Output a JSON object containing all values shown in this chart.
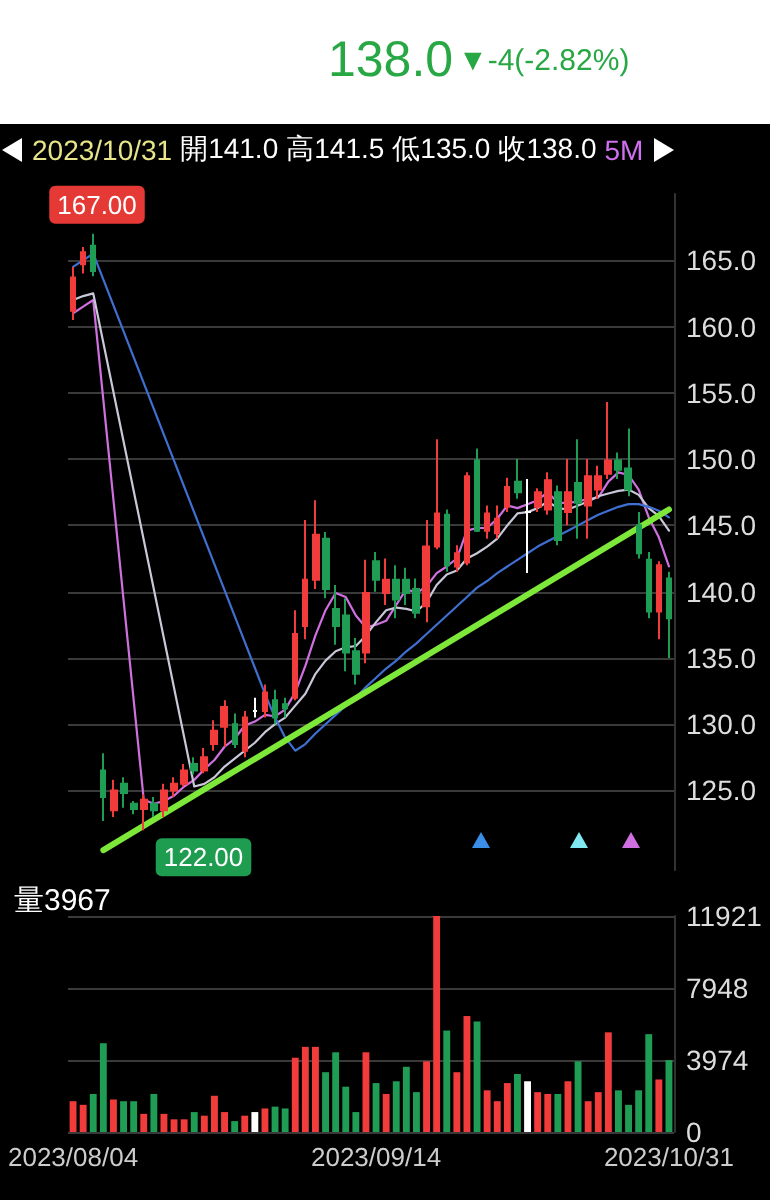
{
  "chart_data": [
    {
      "type": "candlestick",
      "categories": [
        "2023/08/04",
        null,
        null,
        null,
        null,
        null,
        null,
        null,
        null,
        null,
        null,
        null,
        null,
        null,
        null,
        null,
        null,
        null,
        null,
        null,
        null,
        null,
        null,
        null,
        null,
        null,
        null,
        null,
        null,
        null,
        "2023/09/14",
        null,
        null,
        null,
        null,
        null,
        null,
        null,
        null,
        null,
        null,
        null,
        null,
        null,
        null,
        null,
        null,
        null,
        null,
        null,
        null,
        null,
        null,
        null,
        null,
        null,
        null,
        null,
        null,
        "2023/10/31"
      ],
      "ohlc": [
        [
          161.2,
          164.5,
          160.5,
          163.7
        ],
        [
          164.7,
          166,
          164,
          165.6
        ],
        [
          166.1,
          167,
          163.8,
          164.2
        ],
        [
          126.5,
          127.8,
          122.7,
          124.5
        ],
        [
          123.5,
          125.8,
          123,
          125
        ],
        [
          125.5,
          126,
          123.7,
          124.8
        ],
        [
          124,
          124.2,
          123.2,
          123.6
        ],
        [
          123.6,
          124.7,
          122,
          124.3
        ],
        [
          124,
          124.5,
          123,
          123.5
        ],
        [
          123.5,
          125.5,
          123,
          125
        ],
        [
          125,
          126,
          124.5,
          125.5
        ],
        [
          125.5,
          127,
          125.3,
          126.5
        ],
        [
          127,
          127.5,
          126.2,
          126.5
        ],
        [
          126.5,
          128.2,
          126.3,
          127.5
        ],
        [
          128.5,
          130.3,
          128,
          129.5
        ],
        [
          129.8,
          131.8,
          128.3,
          131.3
        ],
        [
          130,
          130.8,
          128.2,
          128.5
        ],
        [
          128,
          131,
          127.5,
          130.5
        ],
        [
          131,
          132,
          130.5,
          131
        ],
        [
          131,
          133,
          130.5,
          132.4
        ],
        [
          131.8,
          132.6,
          130,
          130.5
        ],
        [
          131.5,
          132,
          130.5,
          131.2
        ],
        [
          132,
          138.6,
          131.8,
          136.8
        ],
        [
          137.4,
          145.4,
          136.4,
          140.9
        ],
        [
          140.9,
          146.9,
          140.2,
          144.3
        ],
        [
          144,
          144.5,
          139.5,
          140.2
        ],
        [
          138.7,
          140.5,
          136,
          137.4
        ],
        [
          138.2,
          139.5,
          134,
          135.4
        ],
        [
          135.5,
          136.5,
          133,
          133.8
        ],
        [
          135.4,
          142.4,
          134.6,
          139.9
        ],
        [
          142.3,
          143,
          140,
          140.9
        ],
        [
          139.9,
          142.5,
          139,
          140.9
        ],
        [
          140.9,
          142,
          138,
          139.4
        ],
        [
          140.9,
          141.8,
          139,
          139.9
        ],
        [
          140.2,
          141,
          138,
          138.4
        ],
        [
          138.9,
          145.4,
          137.7,
          143.4
        ],
        [
          143.4,
          151.5,
          143.2,
          145.9
        ],
        [
          145.8,
          146.2,
          141.5,
          142
        ],
        [
          141.9,
          143.5,
          141.5,
          142.9
        ],
        [
          142.2,
          149,
          142,
          148.7
        ],
        [
          149.9,
          150.8,
          144.5,
          144.6
        ],
        [
          144.6,
          146.5,
          144,
          145.9
        ],
        [
          144.4,
          146.5,
          144,
          145.5
        ],
        [
          146.4,
          148.6,
          146,
          147.9
        ],
        [
          148.3,
          150,
          147,
          147.5
        ],
        [
          146,
          148.5,
          141.4,
          146
        ],
        [
          146.4,
          147.8,
          146,
          147.5
        ],
        [
          146.2,
          149,
          145.8,
          148.4
        ],
        [
          147.5,
          148,
          143.5,
          143.9
        ],
        [
          146,
          150,
          145,
          147.5
        ],
        [
          148.2,
          151.5,
          144,
          146.7
        ],
        [
          146.5,
          150,
          144,
          148.7
        ],
        [
          147.7,
          149.5,
          147,
          148.7
        ],
        [
          148.9,
          154.3,
          148.5,
          149.9
        ],
        [
          149.9,
          150.5,
          148.5,
          149.2
        ],
        [
          149.3,
          152.3,
          147.2,
          147.7
        ],
        [
          145,
          146,
          142.5,
          142.9
        ],
        [
          142.4,
          143,
          138,
          138.5
        ],
        [
          138.5,
          142.3,
          136.4,
          142
        ],
        [
          141,
          141.5,
          135,
          138
        ]
      ],
      "colors": [
        "#f23b3b",
        "#f23b3b",
        "#1f9d55",
        "#1f9d55",
        "#f23b3b",
        "#1f9d55",
        "#1f9d55",
        "#f23b3b",
        "#1f9d55",
        "#f23b3b",
        "#f23b3b",
        "#f23b3b",
        "#1f9d55",
        "#f23b3b",
        "#f23b3b",
        "#f23b3b",
        "#1f9d55",
        "#f23b3b",
        "#ffffff",
        "#f23b3b",
        "#1f9d55",
        "#1f9d55",
        "#f23b3b",
        "#f23b3b",
        "#f23b3b",
        "#1f9d55",
        "#1f9d55",
        "#1f9d55",
        "#1f9d55",
        "#f23b3b",
        "#1f9d55",
        "#f23b3b",
        "#1f9d55",
        "#1f9d55",
        "#1f9d55",
        "#f23b3b",
        "#f23b3b",
        "#1f9d55",
        "#f23b3b",
        "#f23b3b",
        "#1f9d55",
        "#f23b3b",
        "#f23b3b",
        "#f23b3b",
        "#1f9d55",
        "#ffffff",
        "#f23b3b",
        "#f23b3b",
        "#1f9d55",
        "#f23b3b",
        "#1f9d55",
        "#f23b3b",
        "#f23b3b",
        "#f23b3b",
        "#1f9d55",
        "#1f9d55",
        "#1f9d55",
        "#1f9d55",
        "#f23b3b",
        "#1f9d55"
      ],
      "series": [
        {
          "type": "line",
          "color": "#d070e0",
          "values": [
            161,
            161.5,
            162,
            null,
            null,
            null,
            null,
            124.3,
            124,
            124.2,
            124.6,
            125.3,
            125.8,
            126.6,
            127.3,
            128.3,
            128.9,
            129.9,
            130.2,
            130.7,
            130.6,
            131.1,
            132.4,
            134.4,
            136.7,
            138.6,
            139.9,
            139.6,
            138.2,
            137.3,
            137.5,
            137.8,
            139,
            140.2,
            139.9,
            140.4,
            141.4,
            141.9,
            142.5,
            144.6,
            144.8,
            144.8,
            145.5,
            146.5,
            146.3,
            146.6,
            146.9,
            147.5,
            146.7,
            146.7,
            146.8,
            147,
            147.1,
            148.3,
            149,
            148.8,
            147.7,
            145.6,
            144.1,
            141.9
          ]
        },
        {
          "type": "line",
          "color": "#c8c8d8",
          "values": [
            162,
            162.3,
            162.5,
            null,
            null,
            null,
            null,
            null,
            null,
            null,
            null,
            null,
            125.3,
            125.5,
            126,
            126.8,
            127.4,
            128,
            128.6,
            129.4,
            130,
            130.5,
            131.4,
            132.3,
            133.8,
            134.8,
            135.5,
            135.8,
            135.9,
            136.7,
            137.7,
            138.6,
            138.8,
            138.7,
            138.5,
            139.2,
            140.5,
            141.3,
            141.6,
            142.5,
            142.9,
            143.4,
            144,
            145,
            145.9,
            146,
            146.3,
            146.8,
            146.3,
            146.2,
            146.5,
            146.8,
            147.2,
            147.4,
            147.6,
            147.7,
            147.3,
            146.3,
            145.7,
            144.6
          ]
        },
        {
          "type": "line",
          "color": "#3f6fd0",
          "values": [
            164.5,
            165,
            165.5,
            null,
            null,
            null,
            null,
            null,
            null,
            null,
            null,
            null,
            null,
            null,
            null,
            null,
            null,
            null,
            null,
            132.3,
            130.5,
            129,
            128,
            128.5,
            129.3,
            130,
            130.7,
            131.4,
            132,
            132.8,
            133.5,
            134.2,
            134.8,
            135.5,
            136.1,
            136.8,
            137.5,
            138.2,
            138.9,
            139.6,
            140.3,
            140.8,
            141.4,
            141.9,
            142.4,
            142.9,
            143.4,
            143.8,
            144.2,
            144.6,
            145,
            145.4,
            145.8,
            146.1,
            146.4,
            146.6,
            146.6,
            146.4,
            146.1,
            145.6
          ]
        },
        {
          "type": "line",
          "color": "#7ee83a",
          "values": [
            null,
            null,
            null,
            120.5,
            null,
            null,
            null,
            null,
            null,
            null,
            null,
            null,
            null,
            null,
            null,
            null,
            null,
            null,
            null,
            null,
            null,
            null,
            null,
            null,
            null,
            null,
            null,
            null,
            null,
            null,
            null,
            null,
            null,
            null,
            null,
            null,
            null,
            null,
            null,
            null,
            null,
            null,
            null,
            null,
            null,
            null,
            null,
            null,
            null,
            null,
            null,
            null,
            null,
            null,
            null,
            null,
            null,
            null,
            null,
            146.2
          ]
        }
      ],
      "line_style": "solid",
      "ylim": [
        119,
        170
      ],
      "yticks": [
        {
          "value": 125,
          "label": "125.0"
        },
        {
          "value": 130,
          "label": "130.0"
        },
        {
          "value": 135,
          "label": "135.0"
        },
        {
          "value": 140,
          "label": "140.0"
        },
        {
          "value": 145,
          "label": "145.0"
        },
        {
          "value": 150,
          "label": "150.0"
        },
        {
          "value": 155,
          "label": "155.0"
        },
        {
          "value": 160,
          "label": "160.0"
        },
        {
          "value": 165,
          "label": "165.0"
        }
      ],
      "grid": "y",
      "tick_labels": "y",
      "annotations": [
        "138.0",
        "▼-4(-2.82%)",
        "2023/10/31",
        "開141.0",
        "高141.5",
        "低135.0",
        "收138.0",
        "5M",
        "167.00",
        "122.00"
      ]
    },
    {
      "type": "bar",
      "title": "量3967",
      "categories": [
        "2023/08/04",
        null,
        null,
        null,
        null,
        null,
        null,
        null,
        null,
        null,
        null,
        null,
        null,
        null,
        null,
        null,
        null,
        null,
        null,
        null,
        null,
        null,
        null,
        null,
        null,
        null,
        null,
        null,
        null,
        null,
        "2023/09/14",
        null,
        null,
        null,
        null,
        null,
        null,
        null,
        null,
        null,
        null,
        null,
        null,
        null,
        null,
        null,
        null,
        null,
        null,
        null,
        null,
        null,
        null,
        null,
        null,
        null,
        null,
        null,
        null,
        "2023/10/31"
      ],
      "values": [
        1700,
        1500,
        2100,
        4900,
        1800,
        1700,
        1700,
        1000,
        2100,
        1000,
        700,
        700,
        1100,
        900,
        2000,
        1100,
        600,
        900,
        1100,
        1300,
        1400,
        1300,
        4100,
        4700,
        4700,
        3300,
        4400,
        2500,
        1100,
        4400,
        2700,
        2100,
        2800,
        3600,
        2200,
        3900,
        11921,
        5600,
        3300,
        6400,
        6100,
        2300,
        1700,
        2700,
        3200,
        2800,
        2200,
        2100,
        2100,
        2800,
        3900,
        1700,
        2200,
        5500,
        2300,
        1500,
        2300,
        5400,
        2900,
        3967
      ],
      "colors": [
        "#f23b3b",
        "#f23b3b",
        "#1f9d55",
        "#1f9d55",
        "#f23b3b",
        "#1f9d55",
        "#1f9d55",
        "#f23b3b",
        "#1f9d55",
        "#f23b3b",
        "#f23b3b",
        "#f23b3b",
        "#1f9d55",
        "#f23b3b",
        "#f23b3b",
        "#f23b3b",
        "#1f9d55",
        "#f23b3b",
        "#ffffff",
        "#f23b3b",
        "#1f9d55",
        "#1f9d55",
        "#f23b3b",
        "#f23b3b",
        "#f23b3b",
        "#1f9d55",
        "#1f9d55",
        "#1f9d55",
        "#1f9d55",
        "#f23b3b",
        "#1f9d55",
        "#f23b3b",
        "#1f9d55",
        "#1f9d55",
        "#1f9d55",
        "#f23b3b",
        "#f23b3b",
        "#1f9d55",
        "#f23b3b",
        "#f23b3b",
        "#1f9d55",
        "#f23b3b",
        "#f23b3b",
        "#f23b3b",
        "#1f9d55",
        "#ffffff",
        "#f23b3b",
        "#f23b3b",
        "#1f9d55",
        "#f23b3b",
        "#1f9d55",
        "#f23b3b",
        "#f23b3b",
        "#f23b3b",
        "#1f9d55",
        "#1f9d55",
        "#1f9d55",
        "#1f9d55",
        "#f23b3b",
        "#1f9d55"
      ],
      "ylim": [
        0,
        11921
      ],
      "yticks": [
        0,
        3974,
        7948,
        11921
      ],
      "grid": "y"
    }
  ]
}
